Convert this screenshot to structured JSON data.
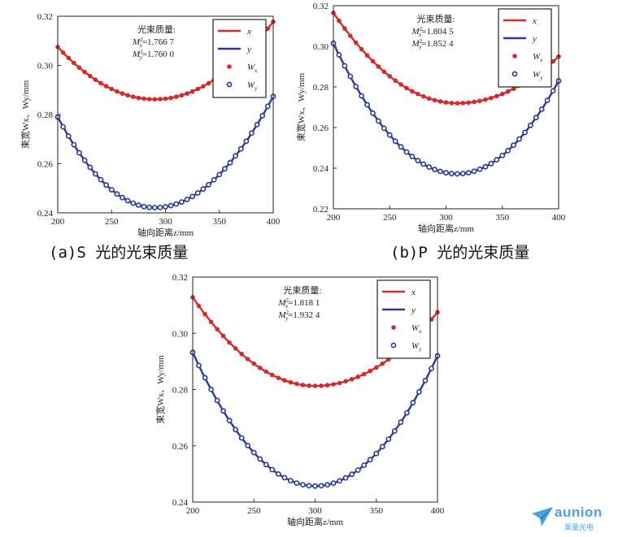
{
  "chart_data": [
    {
      "type": "line",
      "xlabel": "轴向距离z/mm",
      "ylabel": "束宽Wx、Wy/mm",
      "xlim": [
        200,
        400
      ],
      "ylim": [
        0.24,
        0.32
      ],
      "xticks": [
        "200",
        "250",
        "300",
        "350",
        "400"
      ],
      "yticks": [
        "0.24",
        "0.26",
        "0.28",
        "0.30",
        "0.32"
      ],
      "annotation": {
        "title": "光束质量:",
        "mx": "1.766 7",
        "my": "1.760 0"
      },
      "legend_position": "top-right",
      "legend": [
        {
          "text": "x"
        },
        {
          "text": "y"
        },
        {
          "text": "W",
          "sub": "x"
        },
        {
          "text": "W",
          "sub": "y"
        }
      ],
      "series": [
        {
          "name": "x",
          "kind": "line",
          "color": "#d42a2e",
          "z0": 290,
          "wmin": 0.2862,
          "x": [
            200,
            400
          ],
          "y": [
            0.3075,
            0.3178
          ]
        },
        {
          "name": "y",
          "kind": "line",
          "color": "#2b3894",
          "z0": 290,
          "wmin": 0.2421,
          "x": [
            200,
            400
          ],
          "y": [
            0.279,
            0.2874
          ]
        },
        {
          "name": "Wx",
          "kind": "markers",
          "color": "#d42a2e",
          "z0": 290,
          "wmin": 0.2862,
          "x": [
            200,
            400
          ],
          "y": [
            0.3075,
            0.3178
          ]
        },
        {
          "name": "Wy",
          "kind": "markers",
          "color": "#2b3894",
          "z0": 290,
          "wmin": 0.2421,
          "x": [
            200,
            400
          ],
          "y": [
            0.279,
            0.2874
          ]
        }
      ],
      "caption": "(a)S 光的光束质量"
    },
    {
      "type": "line",
      "xlabel": "轴向距离z/mm",
      "ylabel": "束宽Wx、Wy/mm",
      "xlim": [
        200,
        400
      ],
      "ylim": [
        0.22,
        0.32
      ],
      "xticks": [
        "200",
        "250",
        "300",
        "350",
        "400"
      ],
      "yticks": [
        "0.22",
        "0.24",
        "0.26",
        "0.28",
        "0.30",
        "0.32"
      ],
      "annotation": {
        "title": "光束质量:",
        "mx": "1.804 5",
        "my": "1.852 4"
      },
      "legend_position": "top-right",
      "legend": [
        {
          "text": "x"
        },
        {
          "text": "y"
        },
        {
          "text": "W",
          "sub": "x"
        },
        {
          "text": "W",
          "sub": "y"
        }
      ],
      "series": [
        {
          "name": "x",
          "kind": "line",
          "color": "#d42a2e",
          "z0": 310,
          "wmin": 0.272,
          "x": [
            200,
            400
          ],
          "y": [
            0.3165,
            0.295
          ]
        },
        {
          "name": "y",
          "kind": "line",
          "color": "#2b3894",
          "z0": 310,
          "wmin": 0.2372,
          "x": [
            200,
            400
          ],
          "y": [
            0.3015,
            0.283
          ]
        },
        {
          "name": "Wx",
          "kind": "markers",
          "color": "#d42a2e",
          "z0": 310,
          "wmin": 0.272,
          "x": [
            200,
            400
          ],
          "y": [
            0.3165,
            0.295
          ]
        },
        {
          "name": "Wy",
          "kind": "markers",
          "color": "#2b3894",
          "z0": 310,
          "wmin": 0.2372,
          "x": [
            200,
            400
          ],
          "y": [
            0.3015,
            0.283
          ]
        }
      ],
      "caption": "(b)P 光的光束质量"
    },
    {
      "type": "line",
      "xlabel": "轴向距离z/mm",
      "ylabel": "束宽Wx、Wy/mm",
      "xlim": [
        200,
        400
      ],
      "ylim": [
        0.24,
        0.32
      ],
      "xticks": [
        "200",
        "250",
        "300",
        "350",
        "400"
      ],
      "yticks": [
        "0.24",
        "0.26",
        "0.28",
        "0.30",
        "0.32"
      ],
      "annotation": {
        "title": "光束质量:",
        "mx": "1.818 1",
        "my": "1.932 4"
      },
      "legend_position": "top-right",
      "legend": [
        {
          "text": "x"
        },
        {
          "text": "y"
        },
        {
          "text": "W",
          "sub": "x"
        },
        {
          "text": "W",
          "sub": "y"
        }
      ],
      "series": [
        {
          "name": "x",
          "kind": "line",
          "color": "#d42a2e",
          "z0": 300,
          "wmin": 0.2813,
          "x": [
            200,
            400
          ],
          "y": [
            0.3128,
            0.3075
          ]
        },
        {
          "name": "y",
          "kind": "line",
          "color": "#2b3894",
          "z0": 300,
          "wmin": 0.2457,
          "x": [
            200,
            400
          ],
          "y": [
            0.2932,
            0.292
          ]
        },
        {
          "name": "Wx",
          "kind": "markers",
          "color": "#d42a2e",
          "z0": 300,
          "wmin": 0.2813,
          "x": [
            200,
            400
          ],
          "y": [
            0.3128,
            0.3075
          ]
        },
        {
          "name": "Wy",
          "kind": "markers",
          "color": "#2b3894",
          "z0": 300,
          "wmin": 0.2457,
          "x": [
            200,
            400
          ],
          "y": [
            0.2932,
            0.292
          ]
        }
      ],
      "caption": ""
    }
  ],
  "logo": {
    "word": "aunion",
    "sub": "昊量光电",
    "icon": "paper-plane-icon"
  }
}
